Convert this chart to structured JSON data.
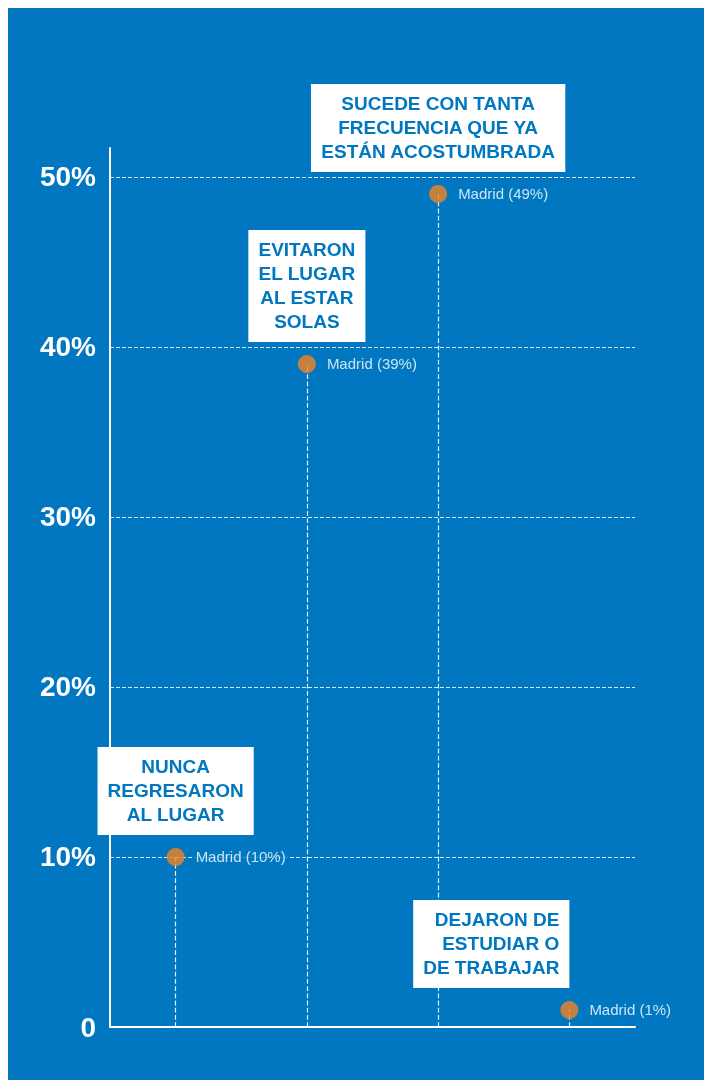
{
  "chart_data": {
    "type": "lollipop",
    "categories": [
      null,
      null,
      null,
      null
    ],
    "values": [
      10,
      39,
      49,
      1
    ],
    "value_labels": [
      "Madrid (10%)",
      "Madrid (39%)",
      "Madrid (49%)",
      "Madrid (1%)"
    ],
    "color": "#f58220",
    "marker": "circle",
    "line_style": "dashed",
    "ylim": [
      0,
      51.7
    ],
    "yticks": [
      0,
      {
        "value": 10,
        "label": "10%"
      },
      {
        "value": 20,
        "label": "20%"
      },
      {
        "value": 30,
        "label": "30%"
      },
      {
        "value": 40,
        "label": "40%"
      },
      {
        "value": 50,
        "label": "50%"
      }
    ],
    "grid": "y",
    "annotations": [
      "NUNCA\nREGRESARON\nAL LUGAR",
      "EVITARON\nEL LUGAR\nAL ESTAR\nSOLAS",
      "SUCEDE CON TANTA\nFRECUENCIA QUE YA\nESTÁN ACOSTUMBRADA",
      "DEJARON DE\nESTUDIAR O\nDE TRABAJAR"
    ]
  }
}
